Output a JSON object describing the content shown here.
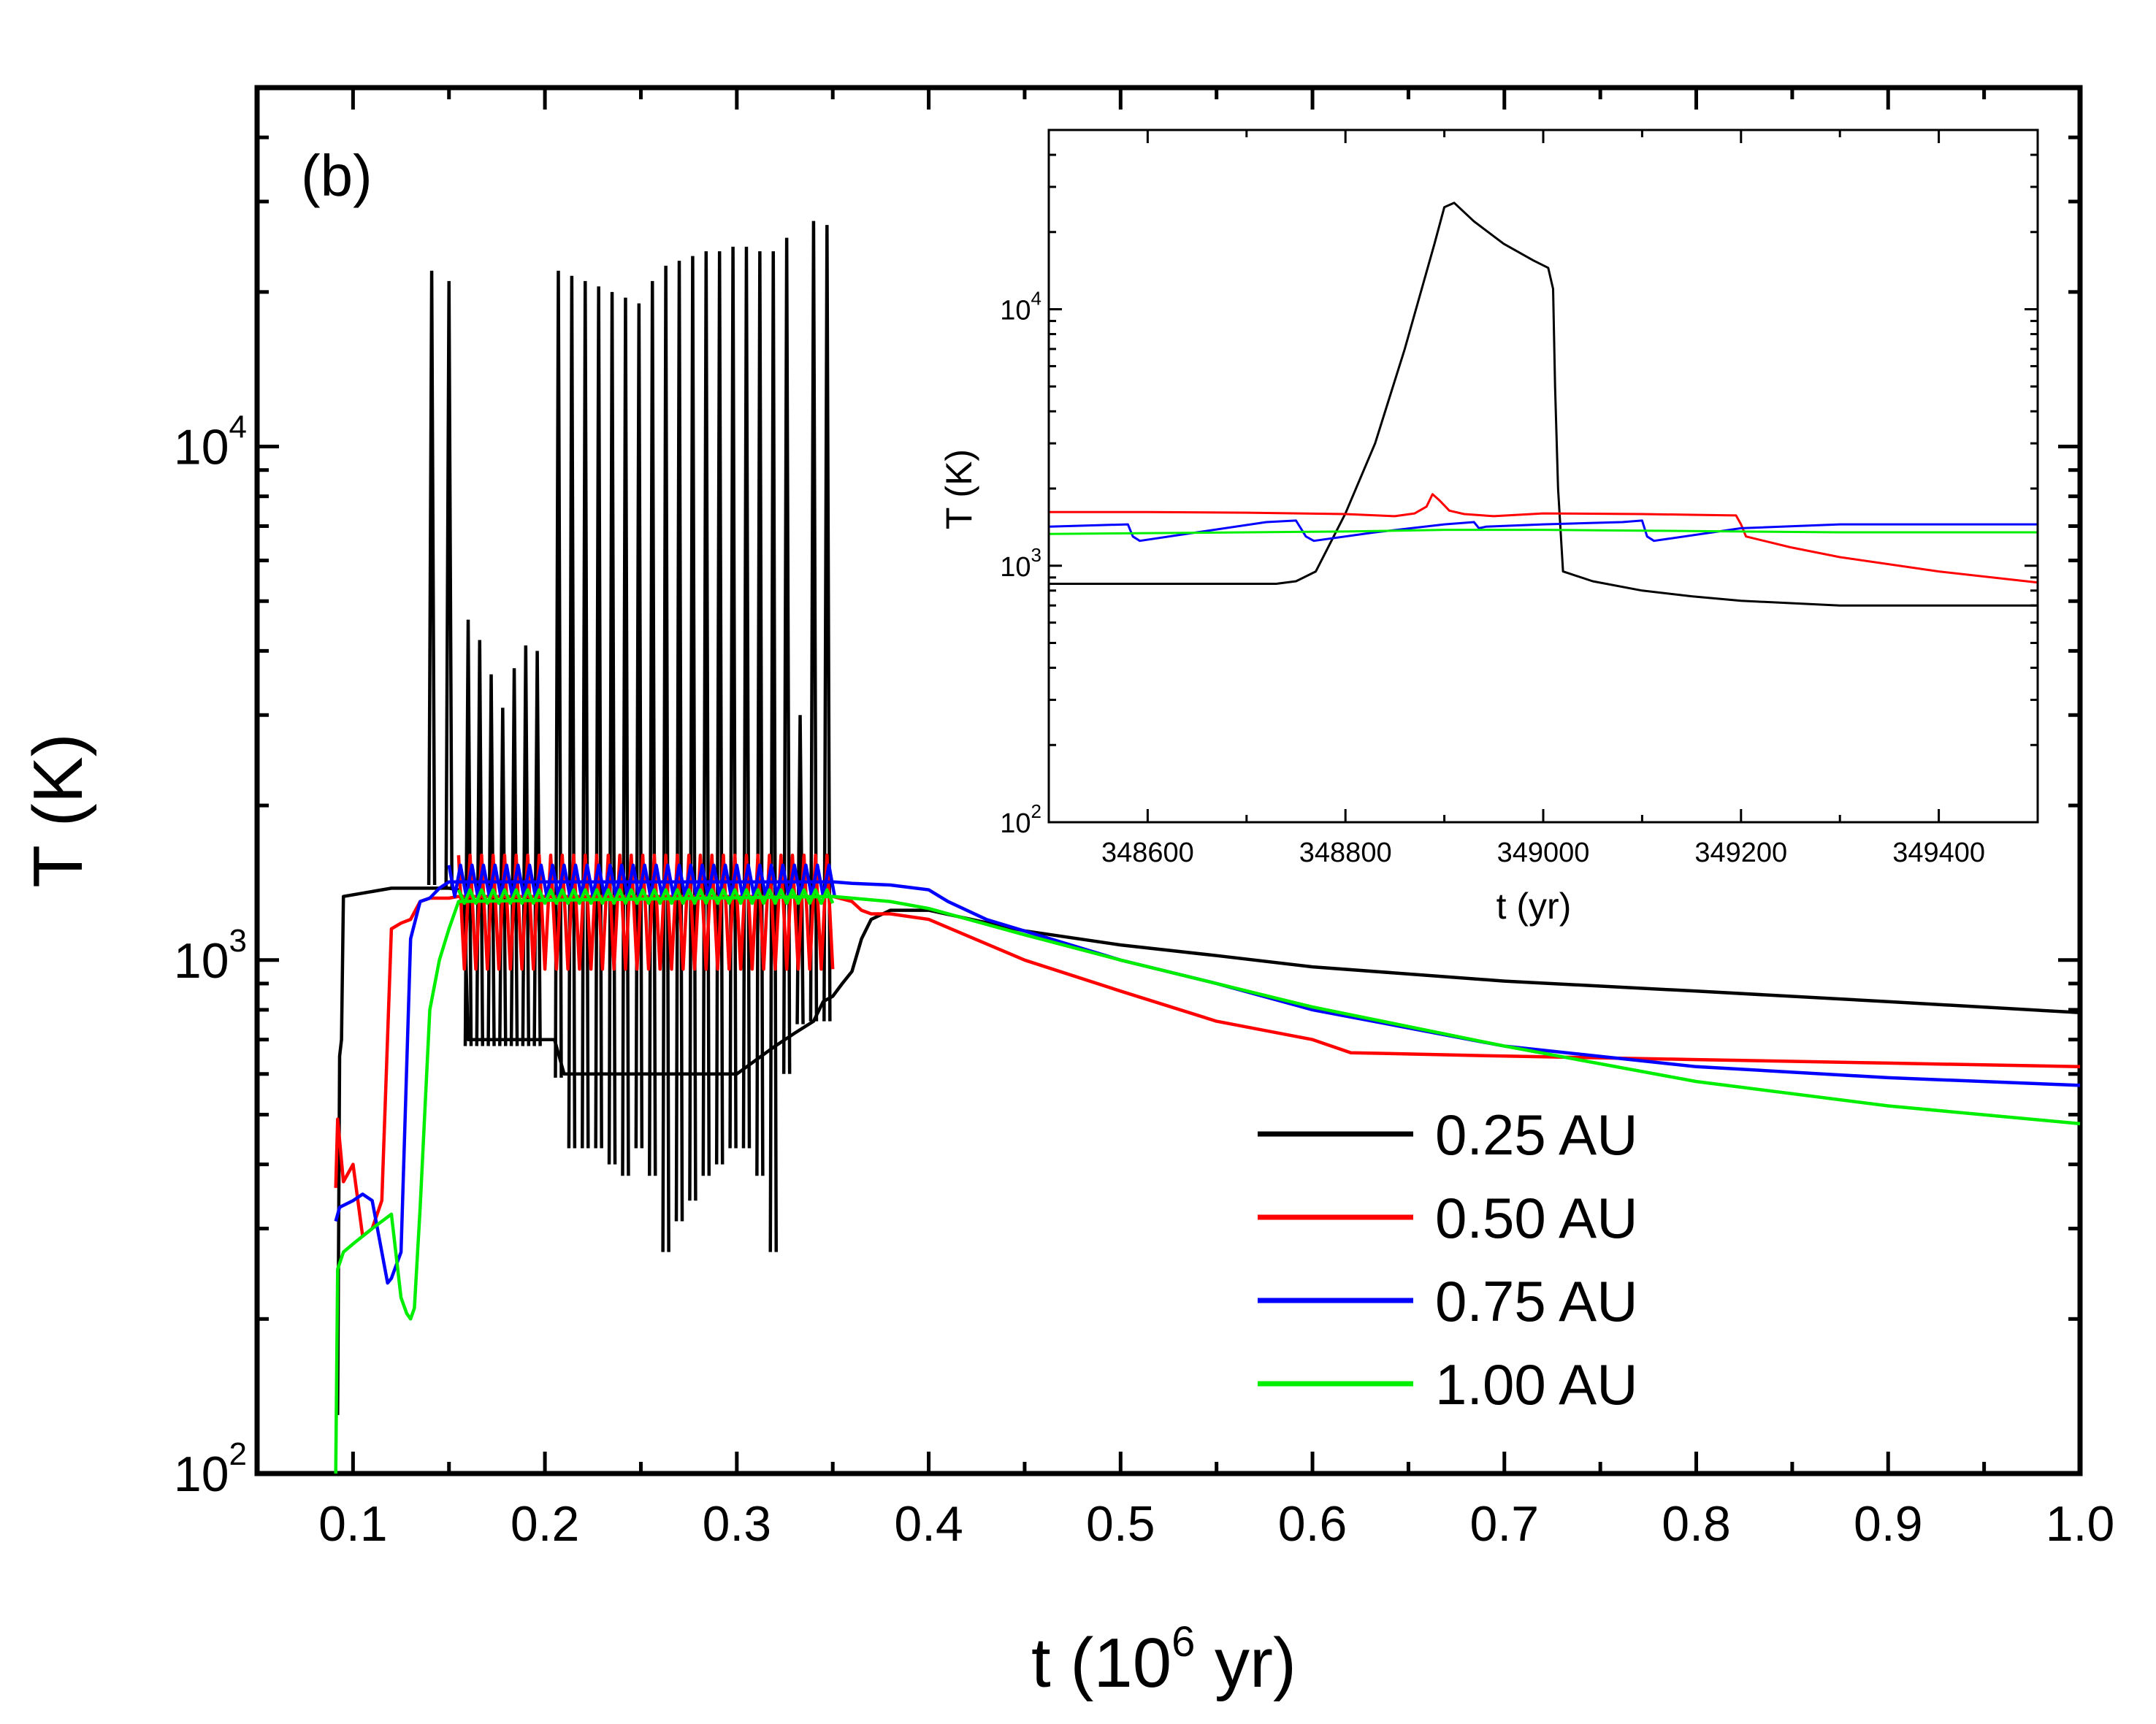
{
  "panel_label": "(b)",
  "chart_data": [
    {
      "id": "main",
      "type": "line",
      "xlabel": "t (10",
      "xlabel_sup": "6",
      "xlabel_end": " yr)",
      "ylabel": "T (K)",
      "xlim": [
        0.05,
        1.0
      ],
      "ylim": [
        100,
        50000
      ],
      "yscale": "log",
      "xticks": [
        0.1,
        0.2,
        0.3,
        0.4,
        0.5,
        0.6,
        0.7,
        0.8,
        0.9,
        1.0
      ],
      "xtick_labels": [
        "0.1",
        "0.2",
        "0.3",
        "0.4",
        "0.5",
        "0.6",
        "0.7",
        "0.8",
        "0.9",
        "1.0"
      ],
      "yticks": [
        {
          "value": 100,
          "base": "10",
          "exp": "2"
        },
        {
          "value": 1000,
          "base": "10",
          "exp": "3"
        },
        {
          "value": 10000,
          "base": "10",
          "exp": "4"
        }
      ],
      "legend_position": "bottom-right",
      "series": [
        {
          "name": "0.25 AU",
          "color": "#000000",
          "x": [
            0.092,
            0.093,
            0.094,
            0.095,
            0.12,
            0.13,
            0.14,
            0.145,
            0.15,
            0.155,
            0.158,
            0.16,
            0.205,
            0.21,
            0.3,
            0.32,
            0.33,
            0.34,
            0.345,
            0.35,
            0.355,
            0.36,
            0.365,
            0.37,
            0.38,
            0.4,
            0.45,
            0.5,
            0.55,
            0.6,
            0.7,
            0.8,
            0.9,
            1.0
          ],
          "y": [
            130,
            650,
            700,
            1330,
            1380,
            1380,
            1380,
            1380,
            1380,
            1370,
            1300,
            700,
            700,
            600,
            600,
            680,
            720,
            760,
            830,
            850,
            900,
            950,
            1100,
            1200,
            1250,
            1250,
            1140,
            1070,
            1020,
            970,
            910,
            870,
            830,
            790
          ],
          "spikes": [
            {
              "x": 0.141,
              "peak": 22000,
              "trough": 1400
            },
            {
              "x": 0.15,
              "peak": 21000,
              "trough": 1380
            },
            {
              "x": 0.16,
              "peak": 4600,
              "trough": 680
            },
            {
              "x": 0.166,
              "peak": 4200,
              "trough": 680
            },
            {
              "x": 0.172,
              "peak": 3600,
              "trough": 680
            },
            {
              "x": 0.178,
              "peak": 3100,
              "trough": 680
            },
            {
              "x": 0.184,
              "peak": 3700,
              "trough": 680
            },
            {
              "x": 0.19,
              "peak": 4100,
              "trough": 680
            },
            {
              "x": 0.196,
              "peak": 4000,
              "trough": 680
            },
            {
              "x": 0.207,
              "peak": 22000,
              "trough": 590
            },
            {
              "x": 0.214,
              "peak": 21500,
              "trough": 430
            },
            {
              "x": 0.221,
              "peak": 21000,
              "trough": 430
            },
            {
              "x": 0.228,
              "peak": 20500,
              "trough": 430
            },
            {
              "x": 0.235,
              "peak": 20000,
              "trough": 400
            },
            {
              "x": 0.242,
              "peak": 19500,
              "trough": 380
            },
            {
              "x": 0.249,
              "peak": 19000,
              "trough": 430
            },
            {
              "x": 0.256,
              "peak": 21000,
              "trough": 380
            },
            {
              "x": 0.263,
              "peak": 22500,
              "trough": 270
            },
            {
              "x": 0.27,
              "peak": 23000,
              "trough": 310
            },
            {
              "x": 0.277,
              "peak": 23500,
              "trough": 340
            },
            {
              "x": 0.284,
              "peak": 24000,
              "trough": 380
            },
            {
              "x": 0.291,
              "peak": 24000,
              "trough": 400
            },
            {
              "x": 0.298,
              "peak": 24500,
              "trough": 430
            },
            {
              "x": 0.305,
              "peak": 24500,
              "trough": 430
            },
            {
              "x": 0.312,
              "peak": 24000,
              "trough": 380
            },
            {
              "x": 0.319,
              "peak": 24000,
              "trough": 270
            },
            {
              "x": 0.326,
              "peak": 25500,
              "trough": 600
            },
            {
              "x": 0.333,
              "peak": 3000,
              "trough": 750
            },
            {
              "x": 0.34,
              "peak": 27500,
              "trough": 760
            },
            {
              "x": 0.347,
              "peak": 27000,
              "trough": 760
            }
          ]
        },
        {
          "name": "0.50 AU",
          "color": "#ff0000",
          "x": [
            0.091,
            0.092,
            0.095,
            0.1,
            0.105,
            0.11,
            0.115,
            0.12,
            0.125,
            0.13,
            0.135,
            0.14,
            0.145,
            0.15,
            0.155,
            0.35,
            0.36,
            0.365,
            0.37,
            0.38,
            0.4,
            0.45,
            0.5,
            0.55,
            0.6,
            0.62,
            0.7,
            0.8,
            0.9,
            1.0
          ],
          "y": [
            360,
            490,
            370,
            400,
            290,
            300,
            340,
            1150,
            1180,
            1200,
            1300,
            1320,
            1320,
            1320,
            1330,
            1330,
            1300,
            1250,
            1230,
            1230,
            1200,
            1000,
            870,
            760,
            700,
            660,
            650,
            640,
            630,
            620
          ],
          "band": {
            "x0": 0.155,
            "x1": 0.352,
            "period": 0.006,
            "hi": 1600,
            "lo": 960
          }
        },
        {
          "name": "0.75 AU",
          "color": "#0000ff",
          "x": [
            0.091,
            0.093,
            0.1,
            0.105,
            0.11,
            0.115,
            0.118,
            0.12,
            0.125,
            0.13,
            0.135,
            0.14,
            0.145,
            0.15,
            0.35,
            0.36,
            0.38,
            0.4,
            0.41,
            0.43,
            0.5,
            0.55,
            0.6,
            0.7,
            0.8,
            0.9,
            1.0
          ],
          "y": [
            310,
            330,
            340,
            350,
            340,
            270,
            235,
            240,
            270,
            1100,
            1300,
            1320,
            1380,
            1420,
            1420,
            1410,
            1400,
            1370,
            1300,
            1200,
            1000,
            900,
            800,
            680,
            620,
            590,
            570
          ],
          "band": {
            "x0": 0.15,
            "x1": 0.352,
            "period": 0.006,
            "hi": 1530,
            "lo": 1330
          }
        },
        {
          "name": "1.00 AU",
          "color": "#00ee00",
          "x": [
            0.091,
            0.092,
            0.095,
            0.1,
            0.11,
            0.12,
            0.125,
            0.128,
            0.13,
            0.132,
            0.135,
            0.14,
            0.145,
            0.15,
            0.155,
            0.35,
            0.38,
            0.4,
            0.45,
            0.5,
            0.55,
            0.6,
            0.7,
            0.8,
            0.9,
            1.0
          ],
          "y": [
            100,
            250,
            270,
            280,
            300,
            320,
            220,
            205,
            200,
            210,
            330,
            800,
            1000,
            1150,
            1300,
            1330,
            1300,
            1260,
            1120,
            1000,
            900,
            810,
            680,
            580,
            520,
            480
          ],
          "band": {
            "x0": 0.155,
            "x1": 0.352,
            "period": 0.006,
            "hi": 1370,
            "lo": 1290
          }
        }
      ]
    },
    {
      "id": "inset",
      "type": "line",
      "xlabel": "t (yr)",
      "ylabel": "T (K)",
      "xlim": [
        348500,
        349500
      ],
      "ylim": [
        100,
        50000
      ],
      "yscale": "log",
      "xticks": [
        348600,
        348800,
        349000,
        349200,
        349400
      ],
      "xtick_labels": [
        "348600",
        "348800",
        "349000",
        "349200",
        "349400"
      ],
      "yticks": [
        {
          "value": 100,
          "base": "10",
          "exp": "2"
        },
        {
          "value": 1000,
          "base": "10",
          "exp": "3"
        },
        {
          "value": 10000,
          "base": "10",
          "exp": "4"
        }
      ],
      "series": [
        {
          "name": "0.25 AU",
          "color": "#000000",
          "x": [
            348500,
            348730,
            348750,
            348770,
            348800,
            348830,
            348860,
            348890,
            348900,
            348910,
            348930,
            348960,
            348990,
            349005,
            349010,
            349012,
            349015,
            349020,
            349050,
            349100,
            349150,
            349200,
            349300,
            349400,
            349500
          ],
          "y": [
            850,
            850,
            870,
            950,
            1600,
            3000,
            7000,
            18000,
            25000,
            26000,
            22000,
            18000,
            15500,
            14500,
            12000,
            5000,
            2000,
            950,
            870,
            800,
            760,
            730,
            700,
            700,
            700
          ],
          "spikes": []
        },
        {
          "name": "0.50 AU",
          "color": "#ff0000",
          "x": [
            348500,
            348600,
            348700,
            348800,
            348850,
            348870,
            348882,
            348888,
            348895,
            348905,
            348920,
            348950,
            349000,
            349100,
            349150,
            349195,
            349200,
            349205,
            349250,
            349300,
            349400,
            349500
          ],
          "y": [
            1620,
            1620,
            1610,
            1590,
            1560,
            1600,
            1700,
            1900,
            1800,
            1640,
            1590,
            1560,
            1600,
            1590,
            1580,
            1570,
            1450,
            1300,
            1180,
            1080,
            950,
            860
          ],
          "band": null
        },
        {
          "name": "0.75 AU",
          "color": "#0000ff",
          "x": [
            348500,
            348580,
            348585,
            348592,
            348650,
            348720,
            348750,
            348760,
            348768,
            348830,
            348900,
            348930,
            348935,
            348942,
            349000,
            349080,
            349100,
            349105,
            349112,
            349200,
            349300,
            349400,
            349500
          ],
          "y": [
            1420,
            1450,
            1300,
            1250,
            1350,
            1480,
            1500,
            1300,
            1250,
            1350,
            1450,
            1480,
            1400,
            1420,
            1450,
            1480,
            1500,
            1300,
            1250,
            1400,
            1450,
            1450,
            1450
          ],
          "band": null
        },
        {
          "name": "1.00 AU",
          "color": "#00ee00",
          "x": [
            348500,
            348600,
            348700,
            348800,
            348900,
            349000,
            349100,
            349200,
            349300,
            349400,
            349500
          ],
          "y": [
            1330,
            1340,
            1350,
            1360,
            1380,
            1380,
            1370,
            1360,
            1350,
            1350,
            1350
          ],
          "band": null
        }
      ]
    }
  ]
}
